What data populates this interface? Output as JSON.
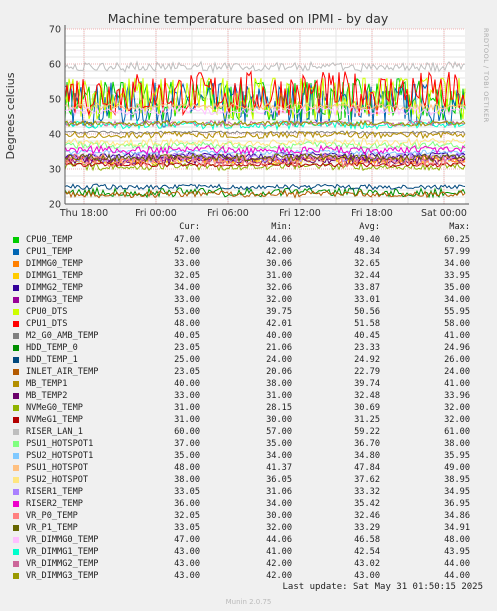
{
  "chart_data": {
    "type": "line",
    "title": "Machine temperature based on IPMI - by day",
    "ylabel": "Degrees celcius",
    "xlabel": "",
    "ylim": [
      20,
      70
    ],
    "yticks": [
      20,
      30,
      40,
      50,
      60,
      70
    ],
    "xticks": [
      "Thu 18:00",
      "Fri 00:00",
      "Fri 06:00",
      "Fri 12:00",
      "Fri 18:00",
      "Sat 00:00"
    ],
    "watermark": "RRDTOOL / TOBI OETIKER",
    "grid": true,
    "columns": [
      "Cur:",
      "Min:",
      "Avg:",
      "Max:"
    ],
    "series": [
      {
        "name": "CPU0_TEMP",
        "color": "#00cc00",
        "cur": "47.00",
        "min": "44.06",
        "avg": "49.40",
        "max": "60.25"
      },
      {
        "name": "CPU1_TEMP",
        "color": "#0066b3",
        "cur": "52.00",
        "min": "42.00",
        "avg": "48.34",
        "max": "57.99"
      },
      {
        "name": "DIMMG0_TEMP",
        "color": "#ff8000",
        "cur": "33.00",
        "min": "30.06",
        "avg": "32.65",
        "max": "34.00"
      },
      {
        "name": "DIMMG1_TEMP",
        "color": "#ffcc00",
        "cur": "32.05",
        "min": "31.00",
        "avg": "32.44",
        "max": "33.95"
      },
      {
        "name": "DIMMG2_TEMP",
        "color": "#330099",
        "cur": "34.00",
        "min": "32.06",
        "avg": "33.87",
        "max": "35.00"
      },
      {
        "name": "DIMMG3_TEMP",
        "color": "#990099",
        "cur": "33.00",
        "min": "32.00",
        "avg": "33.01",
        "max": "34.00"
      },
      {
        "name": "CPU0_DTS",
        "color": "#ccff00",
        "cur": "53.00",
        "min": "39.75",
        "avg": "50.56",
        "max": "55.95"
      },
      {
        "name": "CPU1_DTS",
        "color": "#ff0000",
        "cur": "48.00",
        "min": "42.01",
        "avg": "51.58",
        "max": "58.00"
      },
      {
        "name": "M2_G0_AMB_TEMP",
        "color": "#808080",
        "cur": "40.05",
        "min": "40.00",
        "avg": "40.45",
        "max": "41.00"
      },
      {
        "name": "HDD_TEMP_0",
        "color": "#008f00",
        "cur": "23.05",
        "min": "21.06",
        "avg": "23.33",
        "max": "24.96"
      },
      {
        "name": "HDD_TEMP_1",
        "color": "#00487d",
        "cur": "25.00",
        "min": "24.00",
        "avg": "24.92",
        "max": "26.00"
      },
      {
        "name": "INLET_AIR_TEMP",
        "color": "#b35a00",
        "cur": "23.05",
        "min": "20.06",
        "avg": "22.79",
        "max": "24.00"
      },
      {
        "name": "MB_TEMP1",
        "color": "#b38f00",
        "cur": "40.00",
        "min": "38.00",
        "avg": "39.74",
        "max": "41.00"
      },
      {
        "name": "MB_TEMP2",
        "color": "#6b006b",
        "cur": "33.00",
        "min": "31.00",
        "avg": "32.48",
        "max": "33.96"
      },
      {
        "name": "NVMeG0_TEMP",
        "color": "#8fb300",
        "cur": "31.00",
        "min": "28.15",
        "avg": "30.69",
        "max": "32.00"
      },
      {
        "name": "NVMeG1_TEMP",
        "color": "#b30000",
        "cur": "31.00",
        "min": "30.00",
        "avg": "31.25",
        "max": "32.00"
      },
      {
        "name": "RISER_LAN_1",
        "color": "#bebebe",
        "cur": "60.00",
        "min": "57.00",
        "avg": "59.22",
        "max": "61.00"
      },
      {
        "name": "PSU1_HOTSPOT1",
        "color": "#80ff80",
        "cur": "37.00",
        "min": "35.00",
        "avg": "36.70",
        "max": "38.00"
      },
      {
        "name": "PSU2_HOTSPOT1",
        "color": "#80c9ff",
        "cur": "35.00",
        "min": "34.00",
        "avg": "34.80",
        "max": "35.95"
      },
      {
        "name": "PSU1_HOTSPOT",
        "color": "#ffc080",
        "cur": "48.00",
        "min": "41.37",
        "avg": "47.84",
        "max": "49.00"
      },
      {
        "name": "PSU2_HOTSPOT",
        "color": "#ffe680",
        "cur": "38.00",
        "min": "36.05",
        "avg": "37.62",
        "max": "38.95"
      },
      {
        "name": "RISER1_TEMP",
        "color": "#aa80ff",
        "cur": "33.05",
        "min": "31.06",
        "avg": "33.32",
        "max": "34.95"
      },
      {
        "name": "RISER2_TEMP",
        "color": "#ee00cc",
        "cur": "36.00",
        "min": "34.00",
        "avg": "35.42",
        "max": "36.95"
      },
      {
        "name": "VR_P0_TEMP",
        "color": "#ff8080",
        "cur": "32.05",
        "min": "30.00",
        "avg": "32.46",
        "max": "34.86"
      },
      {
        "name": "VR_P1_TEMP",
        "color": "#666600",
        "cur": "33.05",
        "min": "32.00",
        "avg": "33.29",
        "max": "34.91"
      },
      {
        "name": "VR_DIMMG0_TEMP",
        "color": "#ffbfff",
        "cur": "47.00",
        "min": "44.06",
        "avg": "46.58",
        "max": "48.00"
      },
      {
        "name": "VR_DIMMG1_TEMP",
        "color": "#00ffcc",
        "cur": "43.00",
        "min": "41.00",
        "avg": "42.54",
        "max": "43.95"
      },
      {
        "name": "VR_DIMMG2_TEMP",
        "color": "#cc6699",
        "cur": "43.00",
        "min": "42.00",
        "avg": "43.02",
        "max": "44.00"
      },
      {
        "name": "VR_DIMMG3_TEMP",
        "color": "#999900",
        "cur": "43.00",
        "min": "42.00",
        "avg": "43.00",
        "max": "44.00"
      }
    ]
  },
  "footer": {
    "last_update": "Last update: Sat May 31 01:50:15 2025",
    "munin": "Munin 2.0.75"
  }
}
